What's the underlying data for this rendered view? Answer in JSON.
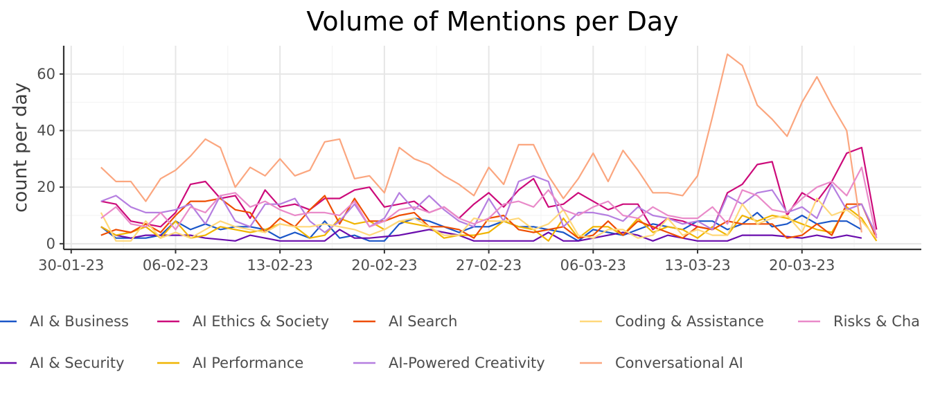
{
  "chart_data": {
    "type": "line",
    "title": "Volume of Mentions per Day",
    "xlabel": "",
    "ylabel": "count per day",
    "x_start": "2023-02-01",
    "x_ticks": [
      {
        "label": "30-01-23",
        "day": -2
      },
      {
        "label": "06-02-23",
        "day": 5
      },
      {
        "label": "13-02-23",
        "day": 12
      },
      {
        "label": "20-02-23",
        "day": 19
      },
      {
        "label": "27-02-23",
        "day": 26
      },
      {
        "label": "06-03-23",
        "day": 33
      },
      {
        "label": "13-03-23",
        "day": 40
      },
      {
        "label": "20-03-23",
        "day": 47
      }
    ],
    "y_ticks": [
      0,
      20,
      40,
      60
    ],
    "xlim": [
      -2.5,
      55
    ],
    "ylim": [
      -2,
      70
    ],
    "series": [
      {
        "name": "AI & Business",
        "color": "#1a56c8",
        "start": 0,
        "values": [
          6,
          2,
          2,
          2,
          3,
          8,
          5,
          7,
          5,
          6,
          6,
          5,
          2,
          4,
          2,
          8,
          2,
          3,
          1,
          1,
          7,
          9,
          8,
          6,
          4,
          6,
          6,
          8,
          6,
          6,
          5,
          4,
          1,
          5,
          4,
          3,
          5,
          7,
          6,
          5,
          8,
          8,
          5,
          7,
          11,
          6,
          7,
          10,
          7,
          8,
          8,
          5
        ]
      },
      {
        "name": "AI & Security",
        "color": "#6a0dad",
        "start": 0,
        "values": [
          6,
          3,
          2,
          3,
          3,
          3,
          3,
          2,
          1.5,
          1,
          3,
          2,
          1,
          1,
          1,
          1,
          5,
          2,
          2,
          2.5,
          3,
          4,
          5,
          4,
          3,
          1,
          1,
          1,
          1,
          1,
          4,
          1,
          1,
          2,
          3,
          4,
          3,
          1,
          3,
          2,
          1,
          1,
          1,
          3,
          3,
          3,
          2.5,
          2,
          3,
          2,
          3,
          2
        ]
      },
      {
        "name": "AI Ethics & Society",
        "color": "#cc0a7a",
        "start": 0,
        "values": [
          15,
          14,
          8,
          7,
          6,
          11,
          21,
          22,
          16,
          17,
          9,
          19,
          13,
          14,
          12,
          16,
          16,
          19,
          20,
          13,
          14,
          15,
          11,
          13,
          9,
          14,
          18,
          13,
          19,
          23,
          13,
          14,
          18,
          15,
          12,
          14,
          14,
          5,
          9,
          8,
          6,
          5,
          18,
          21,
          28,
          29,
          10,
          18,
          15,
          22,
          32,
          34,
          5
        ]
      },
      {
        "name": "AI Performance",
        "color": "#f0b400",
        "start": 0,
        "values": [
          6,
          3,
          4,
          6,
          2,
          8,
          2,
          3,
          6,
          5,
          4,
          5,
          7,
          6,
          2,
          3,
          9,
          7,
          8,
          5,
          8,
          7,
          6,
          2,
          3,
          3,
          4,
          8,
          6,
          5,
          1,
          9,
          2,
          6,
          6,
          3,
          9,
          4,
          6,
          5,
          2,
          6,
          3,
          10,
          8,
          10,
          9,
          7,
          5,
          4,
          13,
          9,
          1
        ]
      },
      {
        "name": "AI Search",
        "color": "#ee4d00",
        "start": 0,
        "values": [
          3,
          5,
          4,
          7,
          4,
          10,
          15,
          15,
          16,
          12,
          11,
          4,
          9,
          6,
          12,
          17,
          7,
          16,
          8,
          8,
          10,
          11,
          6,
          6,
          5,
          2,
          9,
          10,
          5,
          4,
          5,
          6,
          2,
          3,
          8,
          3,
          8,
          6,
          4,
          2,
          6,
          5,
          8,
          7,
          7,
          7,
          2,
          3,
          7,
          3,
          14,
          14,
          2
        ]
      },
      {
        "name": "AI-Powered Creativity",
        "color": "#b57ee0",
        "start": 0,
        "values": [
          15,
          17,
          13,
          11,
          11,
          12,
          14,
          7,
          17,
          8,
          6,
          14,
          14,
          16,
          8,
          4,
          8,
          14,
          6,
          9,
          18,
          12,
          17,
          12,
          8,
          6,
          16,
          8,
          22,
          24,
          22,
          6,
          11,
          11,
          10,
          8,
          13,
          10,
          9,
          7,
          8,
          5,
          17,
          14,
          18,
          19,
          11,
          13,
          9,
          21,
          12,
          14,
          3
        ]
      },
      {
        "name": "Coding & Assistance",
        "color": "#ffd87a",
        "start": 0,
        "values": [
          11,
          1,
          1,
          8,
          2,
          4,
          2,
          5,
          8,
          6,
          5,
          4,
          7,
          6,
          6,
          7,
          6,
          5,
          3,
          5,
          8,
          9,
          6,
          3,
          3,
          9,
          8,
          8,
          9,
          5,
          7,
          12,
          3,
          2,
          5,
          5,
          2,
          3,
          9,
          3,
          5,
          3,
          3,
          14,
          7,
          9,
          10,
          4,
          16,
          10,
          12,
          8,
          2
        ]
      },
      {
        "name": "Conversational AI",
        "color": "#fba67f",
        "start": 0,
        "values": [
          27,
          22,
          22,
          15,
          23,
          26,
          31,
          37,
          34,
          20,
          27,
          24,
          30,
          24,
          26,
          36,
          37,
          23,
          24,
          18,
          34,
          30,
          28,
          24,
          21,
          17,
          27,
          21,
          35,
          35,
          24,
          16,
          23,
          32,
          22,
          33,
          26,
          18,
          18,
          17,
          24,
          45,
          67,
          63,
          49,
          44,
          38,
          50,
          59,
          49,
          40,
          4
        ]
      },
      {
        "name": "Risks & Challenges",
        "color": "#e98ac9",
        "start": 0,
        "values": [
          9,
          13,
          7,
          6,
          11,
          5,
          13,
          11,
          17,
          18,
          13,
          15,
          12,
          10,
          11,
          11,
          10,
          15,
          6,
          8,
          12,
          13,
          11,
          13,
          9,
          7,
          9,
          14,
          15,
          13,
          19,
          12,
          10,
          13,
          15,
          10,
          9,
          13,
          10,
          9,
          9,
          13,
          7,
          19,
          17,
          12,
          11,
          16,
          20,
          22,
          17,
          27,
          2
        ]
      }
    ],
    "legend_labels": {
      "truncated_last": "Risks & Challenges"
    },
    "legend_visible_last": "Risks & Cha"
  }
}
